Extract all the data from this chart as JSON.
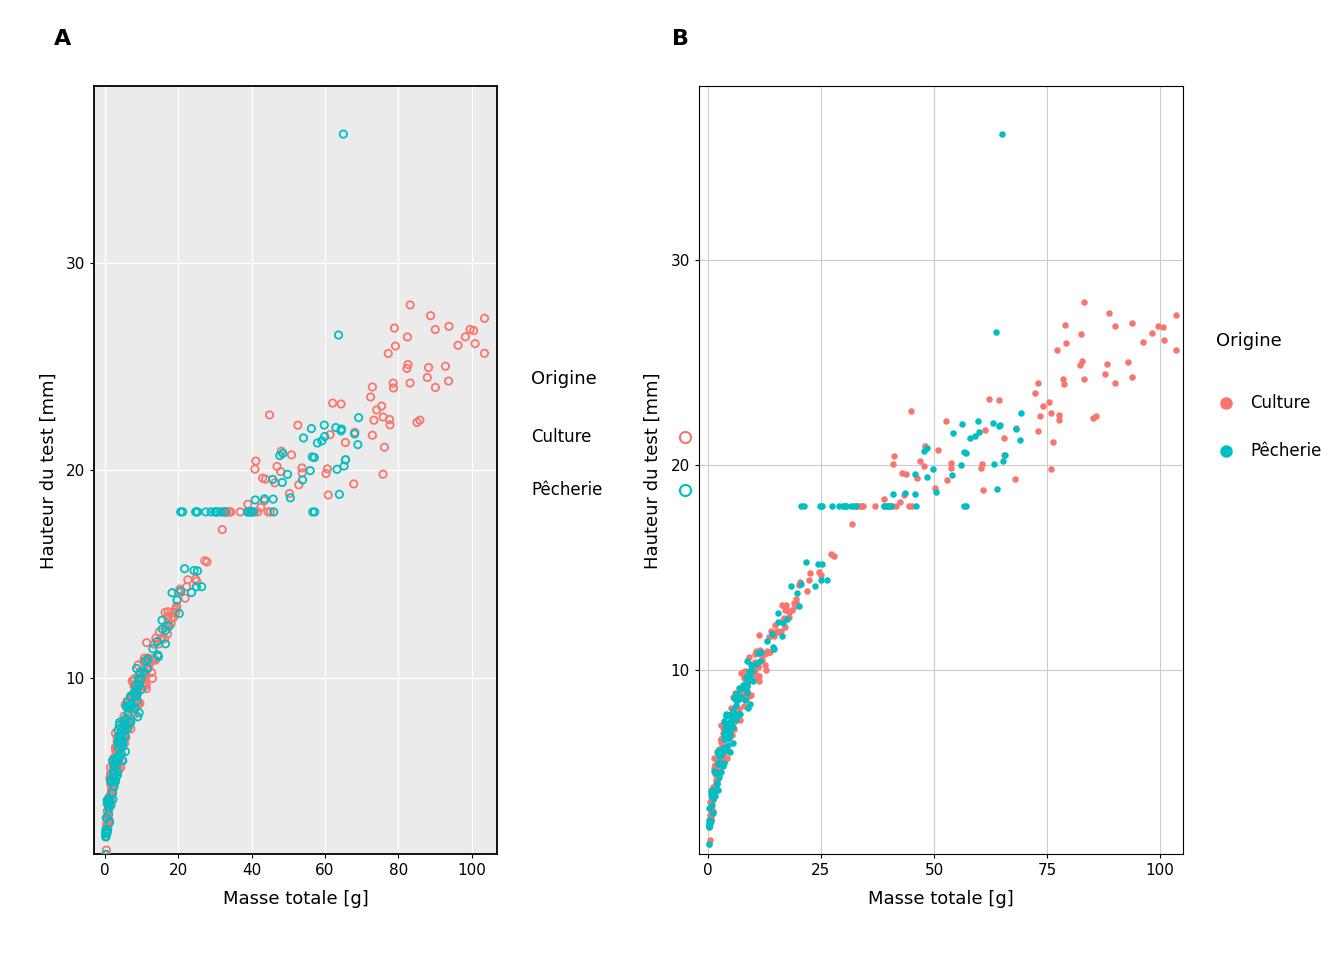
{
  "xlabel": "Masse totale [g]",
  "ylabel": "Hauteur du test [mm]",
  "legend_title": "Origine",
  "legend_culture": "Culture",
  "legend_pecherie": "Pêcherie",
  "color_culture": "#F8766D",
  "color_pecherie": "#00BFC4",
  "panel_A_label": "A",
  "panel_B_label": "B",
  "xlim_A": [
    -3,
    107
  ],
  "ylim_A": [
    1.5,
    38.5
  ],
  "xlim_B": [
    -2,
    105
  ],
  "ylim_B": [
    1.0,
    38.5
  ],
  "xticks_A": [
    0,
    20,
    40,
    60,
    80,
    100
  ],
  "yticks_A": [
    10,
    20,
    30
  ],
  "xticks_B": [
    0,
    25,
    50,
    75,
    100
  ],
  "yticks_B": [
    10,
    20,
    30
  ],
  "bg_A": "#ebebeb",
  "grid_color_A": "#ffffff",
  "bg_B": "#ffffff",
  "grid_color_B": "#cccccc",
  "seed": 42
}
